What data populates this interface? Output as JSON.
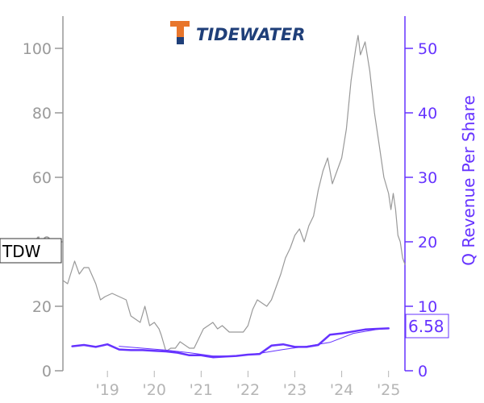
{
  "logo": {
    "text": "TIDEWATER",
    "colors": {
      "mark_orange": "#e8762c",
      "mark_navy": "#1f3f79",
      "text": "#1f3f79"
    }
  },
  "chart_data": {
    "type": "line",
    "title": "",
    "ticker_label": "TDW",
    "x_ticks": [
      "'19",
      "'20",
      "'21",
      "'22",
      "'23",
      "'24",
      "'25"
    ],
    "x_tick_years": [
      2019,
      2020,
      2021,
      2022,
      2023,
      2024,
      2025
    ],
    "xlim": [
      2018.05,
      2025.35
    ],
    "left_axis": {
      "label": "",
      "ylim": [
        0,
        110
      ],
      "ticks": [
        0,
        20,
        40,
        60,
        80,
        100
      ],
      "color": "#999999"
    },
    "right_axis": {
      "label": "Q Revenue Per Share",
      "ylim": [
        0,
        55
      ],
      "ticks": [
        0,
        10,
        20,
        30,
        40,
        50
      ],
      "color": "#6633ff"
    },
    "last_value_label": "6.58",
    "series": [
      {
        "axis": "left",
        "color": "#999999",
        "points": [
          [
            2018.05,
            28
          ],
          [
            2018.15,
            27
          ],
          [
            2018.3,
            34
          ],
          [
            2018.4,
            30
          ],
          [
            2018.5,
            32
          ],
          [
            2018.6,
            32
          ],
          [
            2018.75,
            27
          ],
          [
            2018.85,
            22
          ],
          [
            2018.95,
            23
          ],
          [
            2019.1,
            24
          ],
          [
            2019.25,
            23
          ],
          [
            2019.4,
            22
          ],
          [
            2019.5,
            17
          ],
          [
            2019.6,
            16
          ],
          [
            2019.7,
            15
          ],
          [
            2019.8,
            20
          ],
          [
            2019.9,
            14
          ],
          [
            2020.0,
            15
          ],
          [
            2020.1,
            13
          ],
          [
            2020.15,
            11
          ],
          [
            2020.25,
            6
          ],
          [
            2020.35,
            7
          ],
          [
            2020.45,
            7
          ],
          [
            2020.55,
            9
          ],
          [
            2020.65,
            8
          ],
          [
            2020.75,
            7
          ],
          [
            2020.85,
            7
          ],
          [
            2020.95,
            10
          ],
          [
            2021.05,
            13
          ],
          [
            2021.15,
            14
          ],
          [
            2021.25,
            15
          ],
          [
            2021.35,
            13
          ],
          [
            2021.45,
            14
          ],
          [
            2021.6,
            12
          ],
          [
            2021.75,
            12
          ],
          [
            2021.9,
            12
          ],
          [
            2022.0,
            14
          ],
          [
            2022.1,
            19
          ],
          [
            2022.2,
            22
          ],
          [
            2022.3,
            21
          ],
          [
            2022.4,
            20
          ],
          [
            2022.5,
            22
          ],
          [
            2022.6,
            26
          ],
          [
            2022.7,
            30
          ],
          [
            2022.8,
            35
          ],
          [
            2022.9,
            38
          ],
          [
            2023.0,
            42
          ],
          [
            2023.1,
            44
          ],
          [
            2023.2,
            40
          ],
          [
            2023.3,
            45
          ],
          [
            2023.4,
            48
          ],
          [
            2023.5,
            56
          ],
          [
            2023.6,
            62
          ],
          [
            2023.7,
            66
          ],
          [
            2023.8,
            58
          ],
          [
            2023.9,
            62
          ],
          [
            2024.0,
            66
          ],
          [
            2024.1,
            75
          ],
          [
            2024.2,
            90
          ],
          [
            2024.3,
            100
          ],
          [
            2024.35,
            104
          ],
          [
            2024.4,
            98
          ],
          [
            2024.5,
            102
          ],
          [
            2024.6,
            93
          ],
          [
            2024.7,
            80
          ],
          [
            2024.8,
            70
          ],
          [
            2024.9,
            60
          ],
          [
            2025.0,
            55
          ],
          [
            2025.05,
            50
          ],
          [
            2025.1,
            55
          ],
          [
            2025.15,
            50
          ],
          [
            2025.2,
            42
          ],
          [
            2025.25,
            40
          ],
          [
            2025.3,
            35
          ],
          [
            2025.35,
            33
          ]
        ]
      },
      {
        "axis": "right",
        "color": "#6633ff",
        "points": [
          [
            2018.25,
            3.8
          ],
          [
            2018.5,
            4.0
          ],
          [
            2018.75,
            3.7
          ],
          [
            2019.0,
            4.1
          ],
          [
            2019.25,
            3.3
          ],
          [
            2019.5,
            3.2
          ],
          [
            2019.75,
            3.2
          ],
          [
            2020.0,
            3.1
          ],
          [
            2020.25,
            3.0
          ],
          [
            2020.5,
            2.8
          ],
          [
            2020.75,
            2.4
          ],
          [
            2021.0,
            2.4
          ],
          [
            2021.25,
            2.1
          ],
          [
            2021.5,
            2.2
          ],
          [
            2021.75,
            2.3
          ],
          [
            2022.0,
            2.5
          ],
          [
            2022.25,
            2.6
          ],
          [
            2022.5,
            3.9
          ],
          [
            2022.75,
            4.1
          ],
          [
            2023.0,
            3.7
          ],
          [
            2023.25,
            3.7
          ],
          [
            2023.5,
            4.0
          ],
          [
            2023.75,
            5.6
          ],
          [
            2024.0,
            5.8
          ],
          [
            2024.25,
            6.1
          ],
          [
            2024.5,
            6.4
          ],
          [
            2024.75,
            6.5
          ],
          [
            2025.0,
            6.58
          ]
        ]
      },
      {
        "axis": "right",
        "color": "#6633ff",
        "points": [
          [
            2019.25,
            3.8
          ],
          [
            2019.75,
            3.5
          ],
          [
            2020.25,
            3.2
          ],
          [
            2020.75,
            2.8
          ],
          [
            2021.25,
            2.3
          ],
          [
            2021.75,
            2.3
          ],
          [
            2022.25,
            2.7
          ],
          [
            2022.75,
            3.3
          ],
          [
            2023.25,
            3.8
          ],
          [
            2023.75,
            4.4
          ],
          [
            2024.25,
            5.8
          ],
          [
            2024.75,
            6.4
          ],
          [
            2025.0,
            6.58
          ]
        ]
      }
    ]
  }
}
